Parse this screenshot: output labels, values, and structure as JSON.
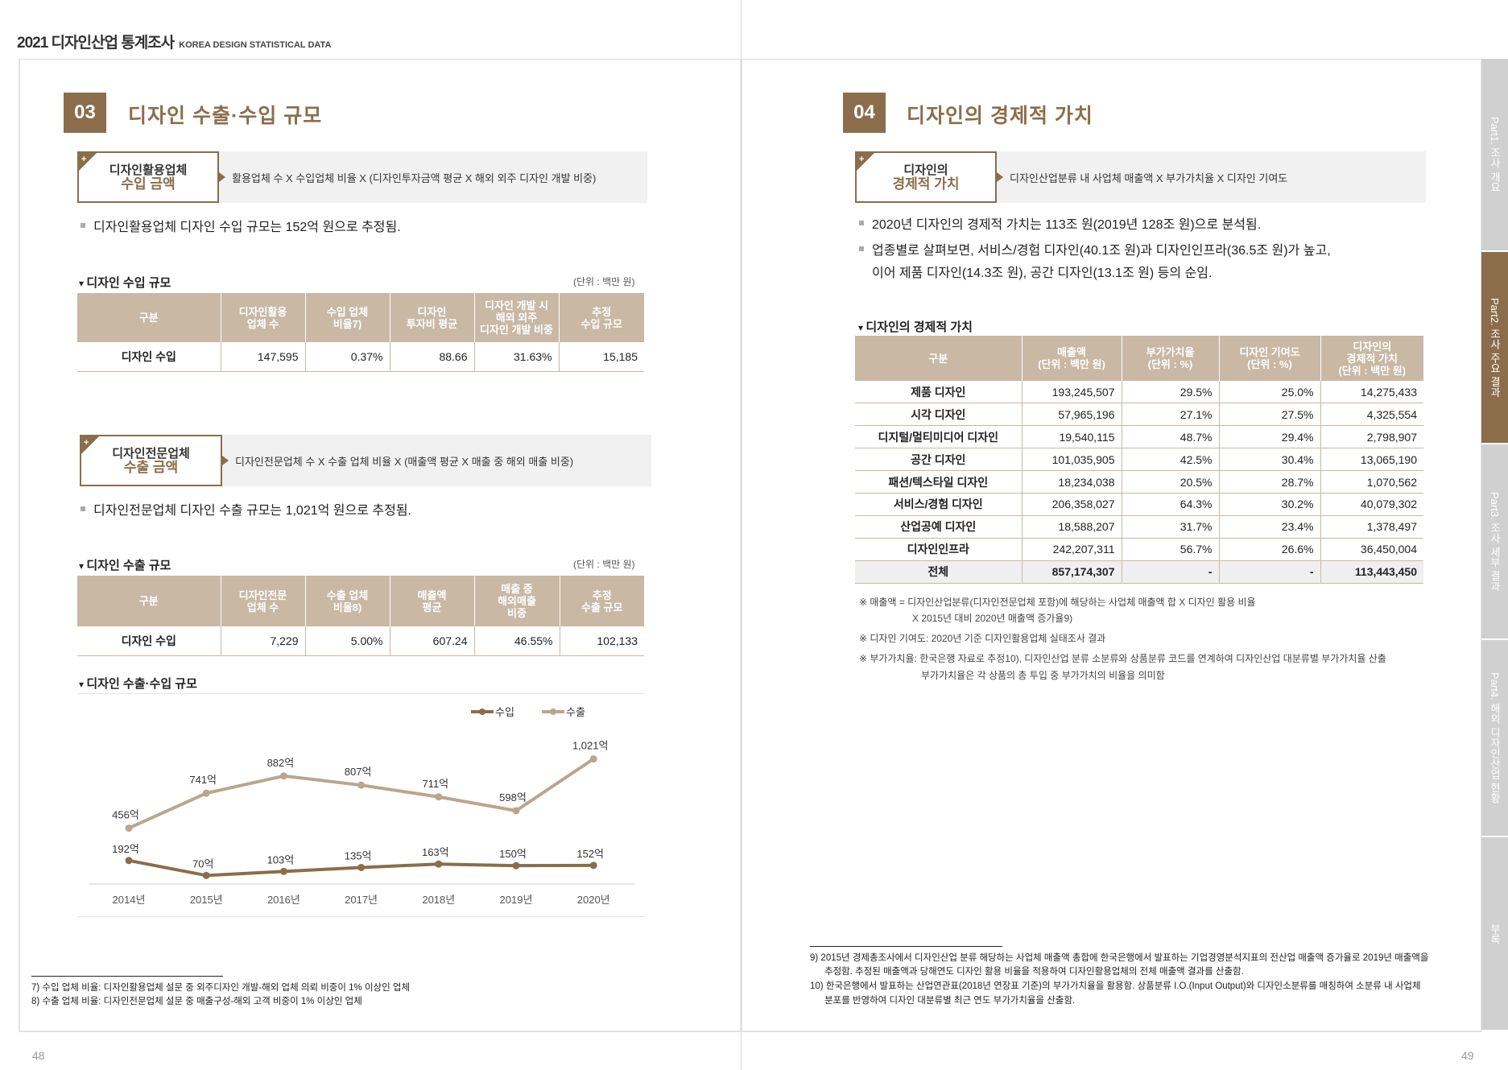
{
  "header": {
    "title": "2021 디자인산업 통계조사",
    "subtitle": "KOREA DESIGN STATISTICAL DATA"
  },
  "left": {
    "section_number": "03",
    "section_title": "디자인 수출·수입 규모",
    "formula1": {
      "label_top": "디자인활용업체",
      "label_bottom": "수입 금액",
      "text": "활용업체 수 X 수입업체 비율 X (디자인투자금액 평균 X 해외 외주 디자인 개발 비중)"
    },
    "bullet1": "디자인활용업체 디자인 수입 규모는 152억 원으로 추정됨.",
    "table1": {
      "title": "디자인 수입 규모",
      "unit": "(단위 : 백만 원)",
      "headers": [
        "구분",
        "디자인활용\n업체 수",
        "수입 업체\n비율7)",
        "디자인\n투자비 평균",
        "디자인 개발 시\n해외 외주\n디자인 개발 비중",
        "추정\n수입 규모"
      ],
      "row": [
        "디자인 수입",
        "147,595",
        "0.37%",
        "88.66",
        "31.63%",
        "15,185"
      ]
    },
    "formula2": {
      "label_top": "디자인전문업체",
      "label_bottom": "수출 금액",
      "text": "디자인전문업체 수 X 수출 업체 비율 X (매출액 평균 X 매출 중 해외 매출 비중)"
    },
    "bullet2": "디자인전문업체 디자인 수출 규모는 1,021억 원으로 추정됨.",
    "table2": {
      "title": "디자인 수출 규모",
      "unit": "(단위 : 백만 원)",
      "headers": [
        "구분",
        "디자인전문\n업체 수",
        "수출 업체\n비율8)",
        "매출액\n평균",
        "매출 중\n해외매출\n비중",
        "추정\n수출 규모"
      ],
      "row": [
        "디자인 수입",
        "7,229",
        "5.00%",
        "607.24",
        "46.55%",
        "102,133"
      ]
    },
    "chart_title": "디자인 수출·수입 규모",
    "footnotes": [
      "7) 수입 업체 비율: 디자인활용업체 설문 중 외주디자인 개발-해외 업체 의뢰 비중이 1% 이상인 업체",
      "8) 수출 업체 비율: 디자인전문업체 설문 중 매출구성-해외 고객 비중이 1% 이상인 업체"
    ],
    "page_number": "48"
  },
  "chart_data": {
    "type": "line",
    "title": "디자인 수출·수입 규모",
    "categories": [
      "2014년",
      "2015년",
      "2016년",
      "2017년",
      "2018년",
      "2019년",
      "2020년"
    ],
    "series": [
      {
        "name": "수입",
        "values": [
          192,
          70,
          103,
          135,
          163,
          150,
          152
        ],
        "labels": [
          "192억",
          "70억",
          "103억",
          "135억",
          "163억",
          "150억",
          "152억"
        ],
        "color": "#8b6d4b"
      },
      {
        "name": "수출",
        "values": [
          456,
          741,
          882,
          807,
          711,
          598,
          1021
        ],
        "labels": [
          "456억",
          "741억",
          "882억",
          "807억",
          "711억",
          "598억",
          "1,021억"
        ],
        "color": "#bba68c"
      }
    ],
    "xlabel": "",
    "ylabel": "",
    "ylim": [
      0,
      1100
    ],
    "legend": "top-right",
    "grid": false
  },
  "right": {
    "section_number": "04",
    "section_title": "디자인의 경제적 가치",
    "formula": {
      "label_top": "디자인의",
      "label_bottom": "경제적 가치",
      "text": "디자인산업분류 내 사업체 매출액  X  부가가치율  X  디자인 기여도"
    },
    "bullets": [
      "2020년 디자인의 경제적 가치는 113조 원(2019년 128조 원)으로 분석됨.",
      "업종별로 살펴보면, 서비스/경험 디자인(40.1조 원)과 디자인인프라(36.5조 원)가 높고,",
      "이어 제품 디자인(14.3조 원), 공간 디자인(13.1조 원) 등의 순임."
    ],
    "table": {
      "title": "디자인의 경제적 가치",
      "headers": [
        "구분",
        "매출액\n(단위 : 백만 원)",
        "부가가치율\n(단위 : %)",
        "디자인 기여도\n(단위 : %)",
        "디자인의\n경제적 가치\n(단위 : 백만 원)"
      ],
      "rows": [
        [
          "제품 디자인",
          "193,245,507",
          "29.5%",
          "25.0%",
          "14,275,433"
        ],
        [
          "시각 디자인",
          "57,965,196",
          "27.1%",
          "27.5%",
          "4,325,554"
        ],
        [
          "디지털/멀티미디어 디자인",
          "19,540,115",
          "48.7%",
          "29.4%",
          "2,798,907"
        ],
        [
          "공간 디자인",
          "101,035,905",
          "42.5%",
          "30.4%",
          "13,065,190"
        ],
        [
          "패션/텍스타일 디자인",
          "18,234,038",
          "20.5%",
          "28.7%",
          "1,070,562"
        ],
        [
          "서비스/경험 디자인",
          "206,358,027",
          "64.3%",
          "30.2%",
          "40,079,302"
        ],
        [
          "산업공예 디자인",
          "18,588,207",
          "31.7%",
          "23.4%",
          "1,378,497"
        ],
        [
          "디자인인프라",
          "242,207,311",
          "56.7%",
          "26.6%",
          "36,450,004"
        ],
        [
          "전체",
          "857,174,307",
          "-",
          "-",
          "113,443,450"
        ]
      ]
    },
    "notes": [
      "※ 매출액 = 디자인산업분류(디자인전문업체 포함)에 해당하는 사업체 매출액 합 X 디자인 활용 비율",
      "X 2015년 대비 2020년 매출액 증가율9)",
      "※ 디자인 기여도: 2020년 기준 디자인활용업체 실태조사 결과",
      "※ 부가가치율: 한국은행 자료로 추정10), 디자인산업 분류 소분류와 상품분류 코드를 연계하여 디자인산업 대분류별 부가가치율 산출",
      "부가가치율은 각 상품의 총 투입 중 부가가치의 비율을 의미함"
    ],
    "footnotes": [
      "9) 2015년 경제총조사에서 디자인산업 분류 해당하는 사업체 매출액 총합에 한국은행에서 발표하는 기업경영분석지표의 전산업 매출액 증가율로 2019년 매출액을",
      "추정함. 추정된 매출액과 당해연도 디자인 활용 비율을 적용하여 디자인활용업체의 전체 매출액 결과를 산출함.",
      "10) 한국은행에서 발표하는 산업연관표(2018년 연장표 기준)의 부가가치율을 활용함. 상품분류 I.O.(Input Output)와 디자인소분류를 매칭하여 소분류 내 사업체",
      "분포를 반영하여 디자인 대분류별 최근 연도 부가가치율을 산출함."
    ],
    "page_number": "49"
  },
  "side_tabs": [
    "Part1. 조사 개요",
    "Part2. 조사 주요 결과",
    "Part3. 조사 세부 결과",
    "Part4. 해외 디자인산업 현황",
    "부록"
  ],
  "colors": {
    "brand": "#8b6d4b",
    "table_header": "#c8b8a4",
    "export_line": "#bba68c",
    "import_line": "#8b6d4b"
  }
}
